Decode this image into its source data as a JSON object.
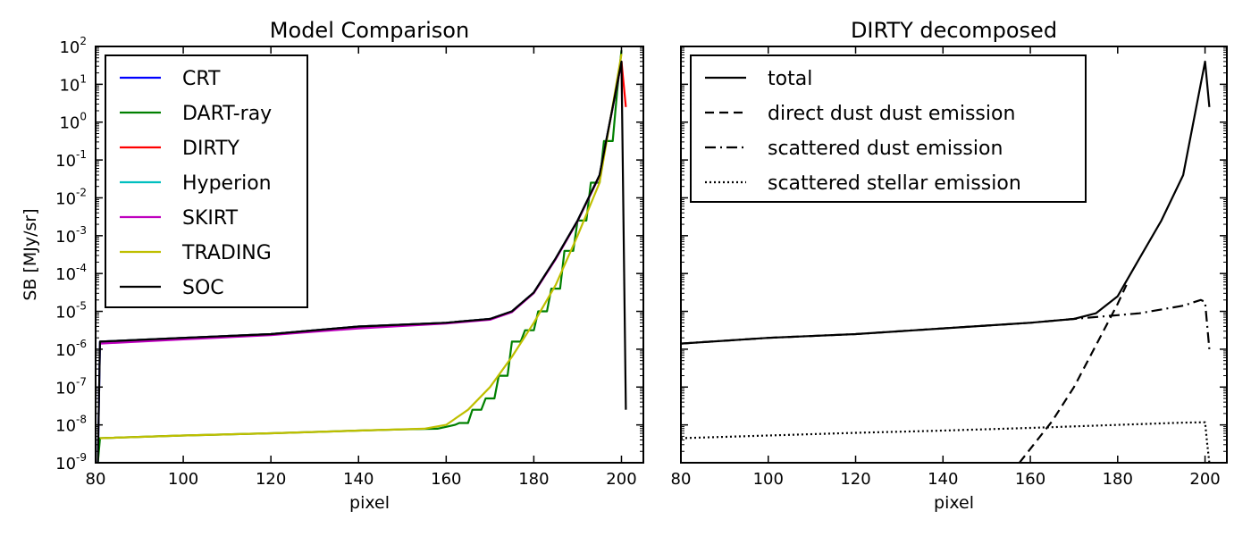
{
  "chart_data": [
    {
      "type": "line",
      "title": "Model Comparison",
      "xlabel": "pixel",
      "ylabel": "SB [MJy/sr]",
      "yscale": "log",
      "xlim": [
        80,
        205
      ],
      "ylim_exp": [
        -9,
        2
      ],
      "xticks": [
        "80",
        "100",
        "120",
        "140",
        "160",
        "180",
        "200"
      ],
      "yticks_base": "10",
      "yticks_exp": [
        "-9",
        "-8",
        "-7",
        "-6",
        "-5",
        "-4",
        "-3",
        "-2",
        "-1",
        "0",
        "1",
        "2"
      ],
      "legend": {
        "placement": "upper-left"
      },
      "series": [
        {
          "name": "CRT",
          "color": "#0000ff",
          "style": "solid",
          "x": [
            80.5,
            81,
            100,
            120,
            140,
            160,
            170,
            175,
            180,
            185,
            190,
            195,
            200
          ],
          "log10_y": [
            -9,
            -5.8,
            -5.7,
            -5.6,
            -5.4,
            -5.3,
            -5.2,
            -5.0,
            -4.5,
            -3.6,
            -2.6,
            -1.4,
            1.6
          ]
        },
        {
          "name": "DART-ray",
          "color": "#008000",
          "style": "step",
          "x": [
            80.5,
            81,
            100,
            120,
            140,
            150,
            158,
            160,
            162,
            163,
            165,
            166,
            168,
            169,
            171,
            172,
            174,
            175,
            177,
            178,
            180,
            181,
            183,
            184,
            186,
            187,
            189,
            190,
            192,
            193,
            195,
            196,
            198,
            199,
            200
          ],
          "log10_y": [
            -9,
            -8.35,
            -8.28,
            -8.22,
            -8.15,
            -8.12,
            -8.1,
            -8.05,
            -8.0,
            -7.95,
            -7.95,
            -7.6,
            -7.6,
            -7.3,
            -7.3,
            -6.7,
            -6.7,
            -5.8,
            -5.8,
            -5.5,
            -5.5,
            -5.0,
            -5.0,
            -4.4,
            -4.4,
            -3.4,
            -3.4,
            -2.6,
            -2.6,
            -1.6,
            -1.6,
            -0.5,
            -0.5,
            0.8,
            1.9
          ]
        },
        {
          "name": "DIRTY",
          "color": "#ff0000",
          "style": "solid",
          "x": [
            81,
            100,
            120,
            140,
            160,
            170,
            175,
            180,
            185,
            190,
            195,
            200,
            201
          ],
          "log10_y": [
            -5.8,
            -5.7,
            -5.6,
            -5.4,
            -5.3,
            -5.2,
            -5.0,
            -4.5,
            -3.6,
            -2.6,
            -1.4,
            1.6,
            0.4
          ]
        },
        {
          "name": "Hyperion",
          "color": "#00bfbf",
          "style": "solid",
          "x": [
            81,
            100,
            120,
            140,
            160,
            170,
            175,
            180,
            185,
            190,
            195,
            200
          ],
          "log10_y": [
            -5.8,
            -5.7,
            -5.6,
            -5.4,
            -5.3,
            -5.2,
            -5.0,
            -4.5,
            -3.6,
            -2.6,
            -1.4,
            1.6
          ]
        },
        {
          "name": "SKIRT",
          "color": "#bf00bf",
          "style": "solid",
          "x": [
            81,
            100,
            120,
            125,
            140,
            160,
            170,
            175,
            180,
            185,
            190,
            195,
            200
          ],
          "log10_y": [
            -5.85,
            -5.74,
            -5.63,
            -5.58,
            -5.45,
            -5.32,
            -5.22,
            -5.02,
            -4.52,
            -3.62,
            -2.62,
            -1.42,
            1.58
          ]
        },
        {
          "name": "TRADING",
          "color": "#bfbf00",
          "style": "solid",
          "x": [
            81,
            100,
            120,
            140,
            155,
            160,
            165,
            170,
            175,
            180,
            185,
            190,
            195,
            200
          ],
          "log10_y": [
            -8.35,
            -8.28,
            -8.22,
            -8.15,
            -8.1,
            -8.0,
            -7.6,
            -7.0,
            -6.2,
            -5.3,
            -4.3,
            -3.0,
            -1.6,
            1.8
          ]
        },
        {
          "name": "SOC",
          "color": "#000000",
          "style": "solid",
          "x": [
            80.5,
            81,
            100,
            120,
            140,
            160,
            170,
            175,
            180,
            185,
            190,
            195,
            200,
            201
          ],
          "log10_y": [
            -9,
            -5.8,
            -5.7,
            -5.6,
            -5.4,
            -5.3,
            -5.2,
            -5.0,
            -4.5,
            -3.6,
            -2.6,
            -1.4,
            1.6,
            -7.6
          ]
        }
      ]
    },
    {
      "type": "line",
      "title": "DIRTY decomposed",
      "xlabel": "pixel",
      "ylabel": "",
      "yscale": "log",
      "xlim": [
        80,
        205
      ],
      "ylim_exp": [
        -9,
        2
      ],
      "xticks": [
        "80",
        "100",
        "120",
        "140",
        "160",
        "180",
        "200"
      ],
      "legend": {
        "placement": "upper-left"
      },
      "series": [
        {
          "name": "total",
          "color": "#000000",
          "style": "solid",
          "x": [
            80,
            100,
            120,
            140,
            160,
            170,
            175,
            180,
            185,
            190,
            195,
            200,
            201
          ],
          "log10_y": [
            -5.85,
            -5.7,
            -5.6,
            -5.45,
            -5.3,
            -5.2,
            -5.05,
            -4.6,
            -3.6,
            -2.6,
            -1.4,
            1.6,
            0.4
          ]
        },
        {
          "name": "direct dust dust emission",
          "color": "#000000",
          "style": "dashed",
          "x": [
            157.5,
            165,
            170,
            175,
            180,
            182
          ],
          "log10_y": [
            -9,
            -7.9,
            -7.0,
            -5.9,
            -4.8,
            -4.3
          ]
        },
        {
          "name": "scattered dust emission",
          "color": "#000000",
          "style": "dashdot",
          "x": [
            80,
            100,
            120,
            140,
            160,
            170,
            175,
            180,
            185,
            190,
            195,
            199,
            200,
            201
          ],
          "log10_y": [
            -5.85,
            -5.7,
            -5.6,
            -5.45,
            -5.3,
            -5.2,
            -5.15,
            -5.1,
            -5.05,
            -4.95,
            -4.85,
            -4.7,
            -4.75,
            -6.0
          ]
        },
        {
          "name": "scattered stellar emission",
          "color": "#000000",
          "style": "dotted",
          "x": [
            80,
            100,
            120,
            140,
            160,
            180,
            195,
            200,
            200.5,
            201
          ],
          "log10_y": [
            -8.35,
            -8.28,
            -8.21,
            -8.15,
            -8.08,
            -8.0,
            -7.94,
            -7.93,
            -8.5,
            -9
          ]
        }
      ]
    }
  ]
}
